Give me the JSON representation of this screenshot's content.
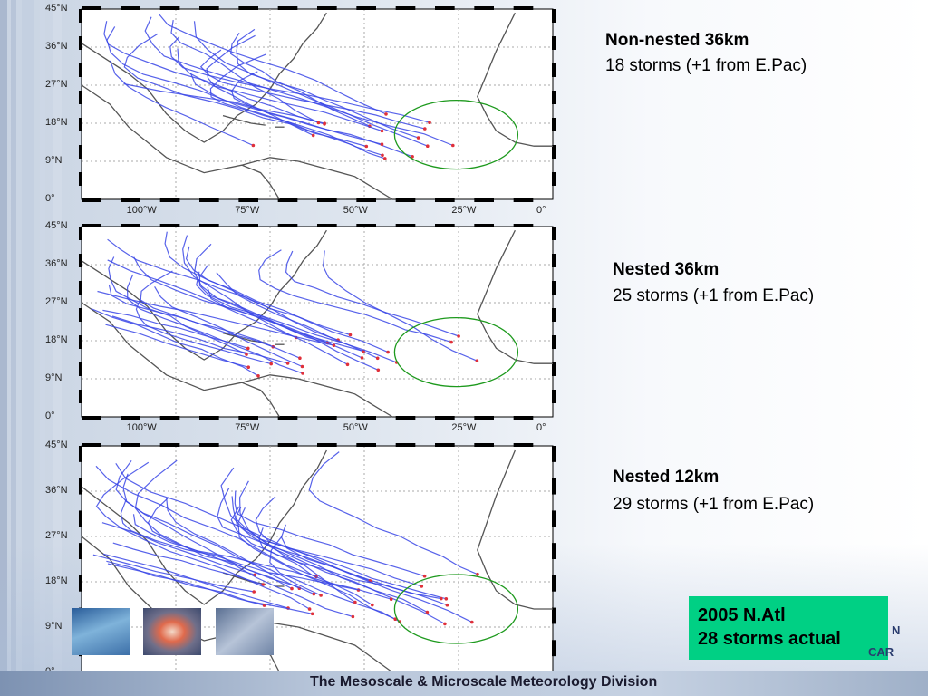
{
  "slide": {
    "footer": "The Mesoscale & Microscale Meteorology Division",
    "logo_text_1": "N",
    "logo_text_2": "CAR"
  },
  "panels": [
    {
      "title": "Non-nested 36km",
      "subtitle": "18 storms (+1 from E.Pac)"
    },
    {
      "title": "Nested 36km",
      "subtitle": "25 storms (+1 from E.Pac)"
    },
    {
      "title": "Nested 12km",
      "subtitle": "29 storms (+1 from E.Pac)"
    }
  ],
  "map_axes": {
    "lat_labels": [
      "45°N",
      "36°N",
      "27°N",
      "18°N",
      "9°N",
      "0°"
    ],
    "lon_labels": [
      "100°W",
      "75°W",
      "50°W",
      "25°W",
      "0°"
    ]
  },
  "actual": {
    "line1": "2005 N.Atl",
    "line2": "28 storms actual"
  },
  "colors": {
    "track": "#3a46e6",
    "coast": "#555555",
    "circle": "#1e9a1e",
    "actual_box": "#00d084",
    "storm_point": "#e0303a"
  },
  "icons": {
    "thumb1": "satellite-image-icon",
    "thumb2": "hurricane-eye-image-icon",
    "thumb3": "cloud-image-icon"
  }
}
